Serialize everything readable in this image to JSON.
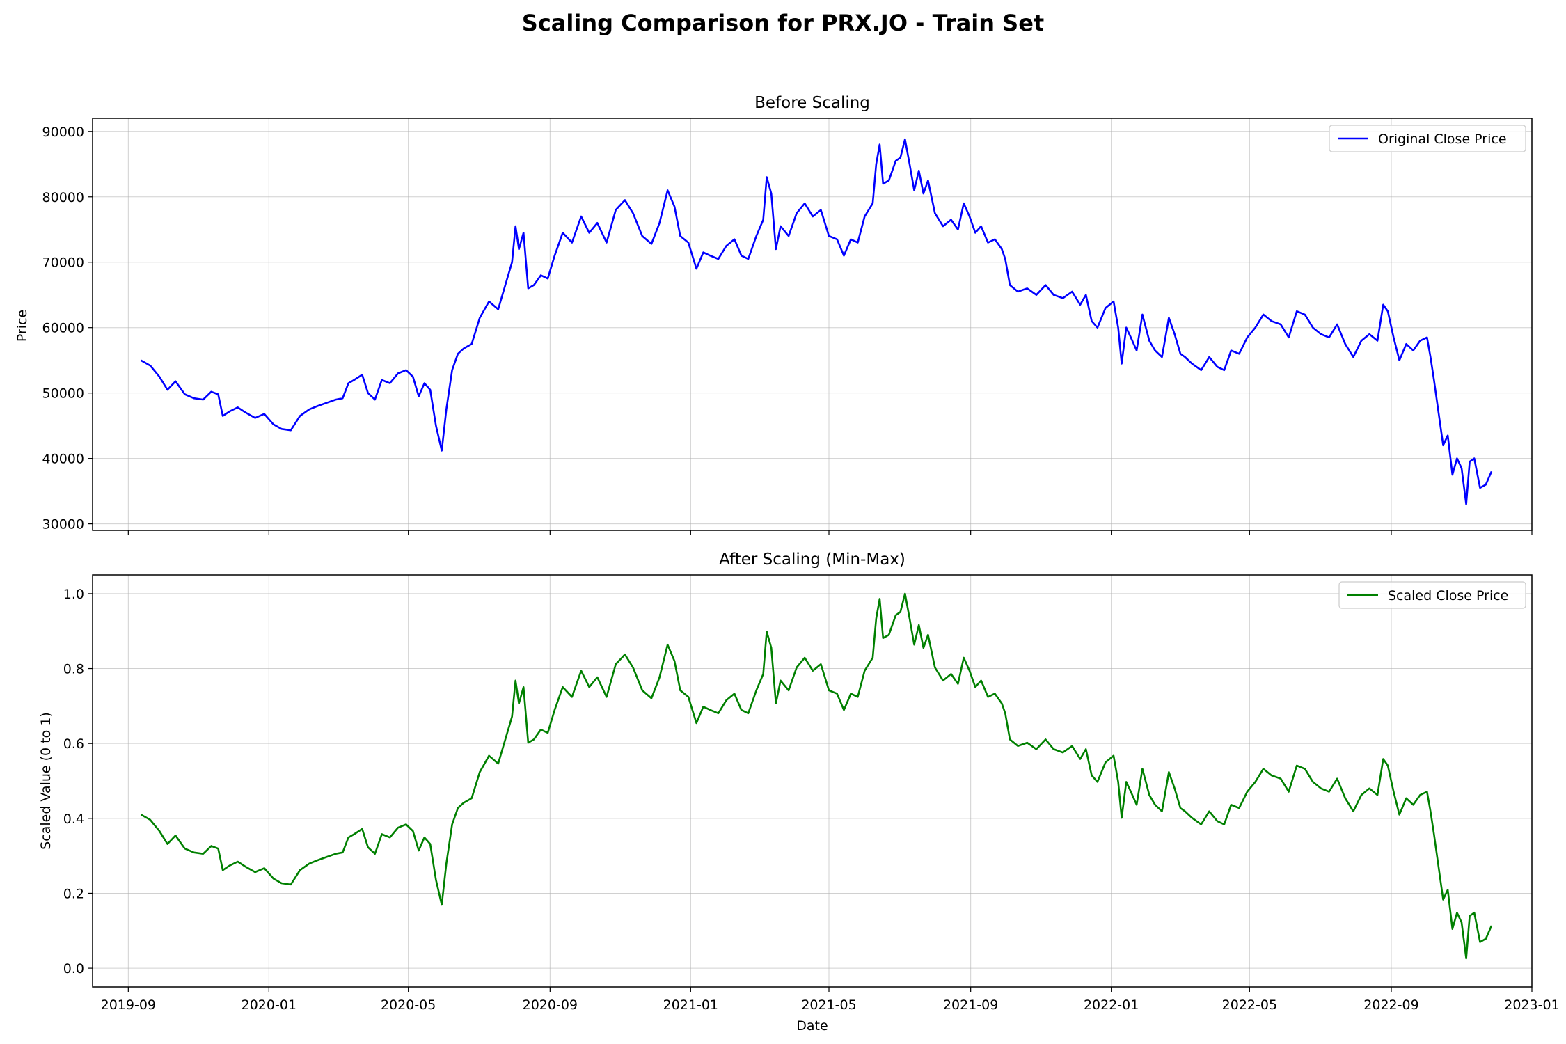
{
  "figure": {
    "suptitle": "Scaling Comparison for PRX.JO - Train Set"
  },
  "chart_data": [
    {
      "type": "line",
      "title": "Before Scaling",
      "xlabel": "",
      "ylabel": "Price",
      "x_ticks": [
        "2019-09",
        "2020-01",
        "2020-05",
        "2020-09",
        "2021-01",
        "2021-05",
        "2021-09",
        "2022-01",
        "2022-05",
        "2022-09",
        "2023-01"
      ],
      "x_tick_labels_visible": false,
      "x_range": [
        "2019-08-01",
        "2023-01-01"
      ],
      "y_ticks": [
        30000,
        40000,
        50000,
        60000,
        70000,
        80000,
        90000
      ],
      "ylim": [
        29000,
        92000
      ],
      "grid": true,
      "legend_position": "top-right",
      "series": [
        {
          "name": "Original Close Price",
          "color": "#0000ff",
          "points": [
            [
              "2019-09-12",
              55000
            ],
            [
              "2019-09-20",
              54200
            ],
            [
              "2019-09-28",
              52500
            ],
            [
              "2019-10-05",
              50500
            ],
            [
              "2019-10-12",
              51800
            ],
            [
              "2019-10-20",
              49800
            ],
            [
              "2019-10-28",
              49200
            ],
            [
              "2019-11-05",
              49000
            ],
            [
              "2019-11-12",
              50200
            ],
            [
              "2019-11-18",
              49800
            ],
            [
              "2019-11-22",
              46500
            ],
            [
              "2019-11-28",
              47200
            ],
            [
              "2019-12-05",
              47800
            ],
            [
              "2019-12-12",
              47000
            ],
            [
              "2019-12-20",
              46200
            ],
            [
              "2019-12-28",
              46800
            ],
            [
              "2020-01-05",
              45200
            ],
            [
              "2020-01-12",
              44500
            ],
            [
              "2020-01-20",
              44300
            ],
            [
              "2020-01-28",
              46500
            ],
            [
              "2020-02-05",
              47500
            ],
            [
              "2020-02-12",
              48000
            ],
            [
              "2020-02-20",
              48500
            ],
            [
              "2020-02-28",
              49000
            ],
            [
              "2020-03-05",
              49200
            ],
            [
              "2020-03-10",
              51500
            ],
            [
              "2020-03-15",
              52000
            ],
            [
              "2020-03-22",
              52800
            ],
            [
              "2020-03-27",
              50000
            ],
            [
              "2020-04-02",
              49000
            ],
            [
              "2020-04-08",
              52000
            ],
            [
              "2020-04-15",
              51500
            ],
            [
              "2020-04-22",
              53000
            ],
            [
              "2020-04-29",
              53500
            ],
            [
              "2020-05-05",
              52500
            ],
            [
              "2020-05-10",
              49500
            ],
            [
              "2020-05-15",
              51500
            ],
            [
              "2020-05-20",
              50500
            ],
            [
              "2020-05-25",
              45000
            ],
            [
              "2020-05-30",
              41200
            ],
            [
              "2020-06-03",
              47500
            ],
            [
              "2020-06-08",
              53500
            ],
            [
              "2020-06-13",
              56000
            ],
            [
              "2020-06-18",
              56800
            ],
            [
              "2020-06-25",
              57500
            ],
            [
              "2020-07-02",
              61500
            ],
            [
              "2020-07-10",
              64000
            ],
            [
              "2020-07-18",
              62800
            ],
            [
              "2020-07-25",
              67000
            ],
            [
              "2020-07-30",
              70000
            ],
            [
              "2020-08-02",
              75500
            ],
            [
              "2020-08-05",
              72000
            ],
            [
              "2020-08-09",
              74500
            ],
            [
              "2020-08-13",
              66000
            ],
            [
              "2020-08-18",
              66500
            ],
            [
              "2020-08-24",
              68000
            ],
            [
              "2020-08-30",
              67500
            ],
            [
              "2020-09-05",
              71000
            ],
            [
              "2020-09-12",
              74500
            ],
            [
              "2020-09-20",
              73000
            ],
            [
              "2020-09-28",
              77000
            ],
            [
              "2020-10-05",
              74500
            ],
            [
              "2020-10-12",
              76000
            ],
            [
              "2020-10-20",
              73000
            ],
            [
              "2020-10-28",
              78000
            ],
            [
              "2020-11-05",
              79500
            ],
            [
              "2020-11-12",
              77500
            ],
            [
              "2020-11-20",
              74000
            ],
            [
              "2020-11-28",
              72800
            ],
            [
              "2020-12-05",
              76000
            ],
            [
              "2020-12-12",
              81000
            ],
            [
              "2020-12-18",
              78500
            ],
            [
              "2020-12-23",
              74000
            ],
            [
              "2020-12-30",
              73000
            ],
            [
              "2021-01-06",
              69000
            ],
            [
              "2021-01-12",
              71500
            ],
            [
              "2021-01-18",
              71000
            ],
            [
              "2021-01-25",
              70500
            ],
            [
              "2021-02-01",
              72500
            ],
            [
              "2021-02-08",
              73500
            ],
            [
              "2021-02-14",
              71000
            ],
            [
              "2021-02-20",
              70500
            ],
            [
              "2021-02-27",
              74000
            ],
            [
              "2021-03-05",
              76500
            ],
            [
              "2021-03-08",
              83000
            ],
            [
              "2021-03-12",
              80500
            ],
            [
              "2021-03-16",
              72000
            ],
            [
              "2021-03-20",
              75500
            ],
            [
              "2021-03-27",
              74000
            ],
            [
              "2021-04-03",
              77500
            ],
            [
              "2021-04-10",
              79000
            ],
            [
              "2021-04-17",
              77000
            ],
            [
              "2021-04-24",
              78000
            ],
            [
              "2021-05-01",
              74000
            ],
            [
              "2021-05-08",
              73500
            ],
            [
              "2021-05-14",
              71000
            ],
            [
              "2021-05-20",
              73500
            ],
            [
              "2021-05-26",
              73000
            ],
            [
              "2021-06-01",
              77000
            ],
            [
              "2021-06-08",
              79000
            ],
            [
              "2021-06-11",
              85000
            ],
            [
              "2021-06-14",
              88000
            ],
            [
              "2021-06-17",
              82000
            ],
            [
              "2021-06-22",
              82500
            ],
            [
              "2021-06-28",
              85500
            ],
            [
              "2021-07-02",
              86000
            ],
            [
              "2021-07-06",
              88800
            ],
            [
              "2021-07-10",
              85000
            ],
            [
              "2021-07-14",
              81000
            ],
            [
              "2021-07-18",
              84000
            ],
            [
              "2021-07-22",
              80500
            ],
            [
              "2021-07-26",
              82500
            ],
            [
              "2021-08-01",
              77500
            ],
            [
              "2021-08-08",
              75500
            ],
            [
              "2021-08-15",
              76500
            ],
            [
              "2021-08-21",
              75000
            ],
            [
              "2021-08-26",
              79000
            ],
            [
              "2021-08-31",
              77000
            ],
            [
              "2021-09-05",
              74500
            ],
            [
              "2021-09-10",
              75500
            ],
            [
              "2021-09-16",
              73000
            ],
            [
              "2021-09-22",
              73500
            ],
            [
              "2021-09-28",
              72000
            ],
            [
              "2021-10-01",
              70500
            ],
            [
              "2021-10-05",
              66500
            ],
            [
              "2021-10-12",
              65500
            ],
            [
              "2021-10-20",
              66000
            ],
            [
              "2021-10-28",
              65000
            ],
            [
              "2021-11-05",
              66500
            ],
            [
              "2021-11-12",
              65000
            ],
            [
              "2021-11-20",
              64500
            ],
            [
              "2021-11-28",
              65500
            ],
            [
              "2021-12-05",
              63500
            ],
            [
              "2021-12-10",
              65000
            ],
            [
              "2021-12-15",
              61000
            ],
            [
              "2021-12-20",
              60000
            ],
            [
              "2021-12-27",
              63000
            ],
            [
              "2022-01-03",
              64000
            ],
            [
              "2022-01-07",
              60000
            ],
            [
              "2022-01-10",
              54500
            ],
            [
              "2022-01-14",
              60000
            ],
            [
              "2022-01-18",
              58500
            ],
            [
              "2022-01-23",
              56500
            ],
            [
              "2022-01-28",
              62000
            ],
            [
              "2022-02-03",
              58000
            ],
            [
              "2022-02-08",
              56500
            ],
            [
              "2022-02-14",
              55500
            ],
            [
              "2022-02-20",
              61500
            ],
            [
              "2022-02-25",
              59000
            ],
            [
              "2022-03-02",
              56000
            ],
            [
              "2022-03-06",
              55500
            ],
            [
              "2022-03-12",
              54500
            ],
            [
              "2022-03-20",
              53500
            ],
            [
              "2022-03-27",
              55500
            ],
            [
              "2022-04-03",
              54000
            ],
            [
              "2022-04-09",
              53500
            ],
            [
              "2022-04-15",
              56500
            ],
            [
              "2022-04-22",
              56000
            ],
            [
              "2022-04-29",
              58500
            ],
            [
              "2022-05-06",
              60000
            ],
            [
              "2022-05-13",
              62000
            ],
            [
              "2022-05-20",
              61000
            ],
            [
              "2022-05-28",
              60500
            ],
            [
              "2022-06-04",
              58500
            ],
            [
              "2022-06-11",
              62500
            ],
            [
              "2022-06-18",
              62000
            ],
            [
              "2022-06-25",
              60000
            ],
            [
              "2022-07-02",
              59000
            ],
            [
              "2022-07-09",
              58500
            ],
            [
              "2022-07-16",
              60500
            ],
            [
              "2022-07-23",
              57500
            ],
            [
              "2022-07-30",
              55500
            ],
            [
              "2022-08-06",
              58000
            ],
            [
              "2022-08-13",
              59000
            ],
            [
              "2022-08-20",
              58000
            ],
            [
              "2022-08-25",
              63500
            ],
            [
              "2022-08-29",
              62500
            ],
            [
              "2022-09-03",
              58500
            ],
            [
              "2022-09-08",
              55000
            ],
            [
              "2022-09-14",
              57500
            ],
            [
              "2022-09-20",
              56500
            ],
            [
              "2022-09-26",
              58000
            ],
            [
              "2022-10-02",
              58500
            ],
            [
              "2022-10-05",
              55500
            ],
            [
              "2022-10-08",
              52000
            ],
            [
              "2022-10-12",
              47000
            ],
            [
              "2022-10-16",
              42000
            ],
            [
              "2022-10-20",
              43500
            ],
            [
              "2022-10-24",
              37500
            ],
            [
              "2022-10-28",
              40000
            ],
            [
              "2022-11-01",
              38500
            ],
            [
              "2022-11-05",
              33000
            ],
            [
              "2022-11-08",
              39500
            ],
            [
              "2022-11-12",
              40000
            ],
            [
              "2022-11-17",
              35500
            ],
            [
              "2022-11-22",
              36000
            ],
            [
              "2022-11-27",
              38000
            ]
          ]
        }
      ]
    },
    {
      "type": "line",
      "title": "After Scaling (Min-Max)",
      "xlabel": "Date",
      "ylabel": "Scaled Value (0 to 1)",
      "x_ticks": [
        "2019-09",
        "2020-01",
        "2020-05",
        "2020-09",
        "2021-01",
        "2021-05",
        "2021-09",
        "2022-01",
        "2022-05",
        "2022-09",
        "2023-01"
      ],
      "x_tick_labels_visible": true,
      "x_range": [
        "2019-08-01",
        "2023-01-01"
      ],
      "y_ticks": [
        0.0,
        0.2,
        0.4,
        0.6,
        0.8,
        1.0
      ],
      "y_tick_labels": [
        "0.0",
        "0.2",
        "0.4",
        "0.6",
        "0.8",
        "1.0"
      ],
      "ylim": [
        -0.05,
        1.05
      ],
      "grid": true,
      "legend_position": "top-right",
      "scaling": {
        "min": 31500,
        "max": 88800
      },
      "series": [
        {
          "name": "Scaled Close Price",
          "color": "#008000",
          "points": []
        }
      ]
    }
  ]
}
